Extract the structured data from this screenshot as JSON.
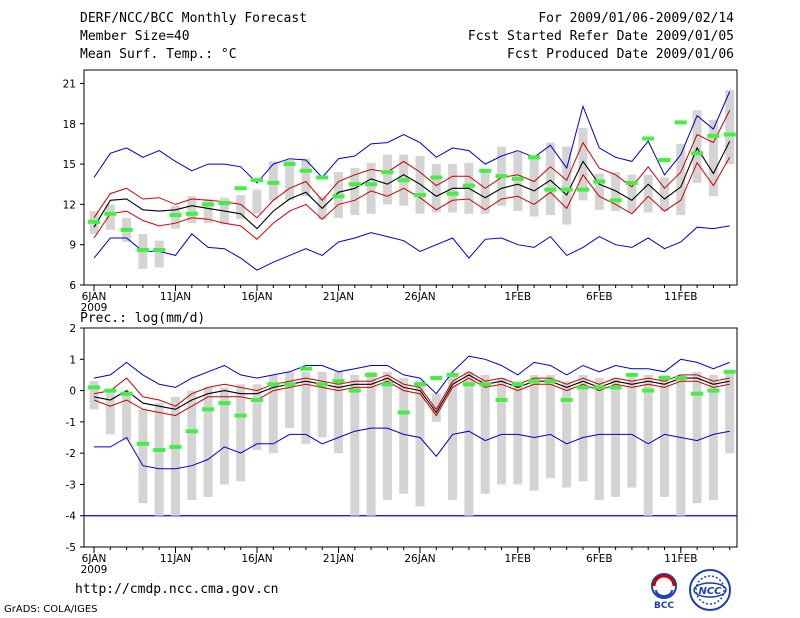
{
  "header": {
    "title": "DERF/NCC/BCC Monthly Forecast",
    "member_size": "Member Size=40",
    "variable": "Mean Surf. Temp.: °C",
    "period": "For 2009/01/06-2009/02/14",
    "started": "Fcst Started Refer Date 2009/01/05",
    "produced": "Fcst Produced Date 2009/01/06"
  },
  "precip_label": "Prec.: log(mm/d)",
  "footer": {
    "url": "http://cmdp.ncc.cma.gov.cn",
    "grads": "GrADS: COLA/IGES",
    "logo1": "BCC",
    "logo2": "NCC"
  },
  "colors": {
    "envelope": "#0000cc",
    "spread": "#cc0000",
    "mean": "#000000",
    "box": "#d4d4d4",
    "obs": "#44ee44"
  },
  "chart_data": [
    {
      "type": "line",
      "title": "Mean Surf. Temp.",
      "ylabel": "°C",
      "ylim": [
        6,
        22
      ],
      "yticks": [
        6,
        9,
        12,
        15,
        18,
        21
      ],
      "xtick_labels": [
        "6JAN",
        "11JAN",
        "16JAN",
        "21JAN",
        "26JAN",
        "1FEB",
        "6FEB",
        "11FEB"
      ],
      "xtick_days": [
        0,
        5,
        10,
        15,
        20,
        26,
        31,
        36
      ],
      "year_label": "2009",
      "n_days": 40,
      "series": [
        {
          "name": "max",
          "values": [
            14.0,
            15.8,
            16.2,
            15.5,
            16.0,
            15.2,
            14.5,
            15.0,
            15.0,
            14.8,
            13.6,
            15.0,
            15.4,
            15.3,
            14.0,
            15.4,
            15.6,
            16.5,
            16.6,
            17.2,
            16.6,
            15.5,
            16.2,
            16.0,
            15.0,
            15.6,
            16.0,
            15.5,
            16.4,
            14.7,
            19.3,
            16.2,
            15.5,
            15.2,
            16.7,
            14.2,
            15.7,
            18.6,
            17.6,
            20.4
          ]
        },
        {
          "name": "upper",
          "values": [
            11.0,
            12.8,
            13.2,
            12.4,
            12.5,
            12.0,
            12.4,
            12.3,
            12.2,
            12.0,
            11.0,
            12.3,
            13.2,
            13.7,
            12.3,
            13.7,
            14.2,
            14.6,
            14.4,
            15.2,
            14.4,
            13.4,
            14.1,
            14.1,
            13.2,
            14.0,
            14.2,
            13.7,
            14.8,
            13.8,
            16.6,
            14.7,
            14.2,
            13.3,
            14.8,
            13.2,
            14.4,
            17.2,
            16.6,
            19.0
          ]
        },
        {
          "name": "mean",
          "values": [
            10.3,
            12.3,
            12.4,
            11.6,
            11.5,
            11.6,
            11.9,
            11.7,
            11.5,
            11.3,
            10.2,
            11.5,
            12.4,
            12.9,
            11.7,
            12.9,
            13.2,
            13.9,
            13.5,
            14.2,
            13.5,
            12.6,
            13.2,
            13.2,
            12.5,
            13.2,
            13.5,
            13.0,
            13.8,
            12.7,
            15.2,
            13.5,
            13.0,
            12.3,
            13.5,
            12.4,
            13.3,
            16.2,
            14.3,
            16.7
          ]
        },
        {
          "name": "lower",
          "values": [
            9.5,
            11.3,
            11.5,
            10.8,
            10.4,
            10.6,
            11.0,
            10.9,
            10.6,
            10.4,
            9.4,
            10.6,
            11.5,
            12.0,
            10.9,
            12.0,
            12.3,
            13.0,
            12.6,
            13.2,
            12.5,
            11.6,
            12.3,
            12.4,
            11.6,
            12.4,
            12.6,
            12.0,
            12.9,
            11.7,
            14.2,
            12.6,
            12.0,
            11.3,
            12.6,
            11.5,
            12.3,
            15.1,
            13.4,
            15.5
          ]
        },
        {
          "name": "min",
          "values": [
            8.0,
            9.5,
            9.5,
            8.5,
            8.5,
            8.2,
            9.8,
            8.8,
            8.7,
            8.0,
            7.1,
            7.7,
            8.2,
            8.7,
            8.2,
            9.2,
            9.5,
            9.9,
            9.6,
            9.3,
            8.5,
            9.0,
            9.5,
            8.0,
            9.4,
            9.5,
            9.0,
            8.8,
            9.6,
            8.2,
            8.8,
            9.6,
            9.0,
            8.8,
            9.5,
            8.7,
            9.2,
            10.3,
            10.2,
            10.4
          ]
        },
        {
          "name": "box_high",
          "values": [
            11.5,
            12.0,
            11.0,
            9.8,
            9.3,
            11.9,
            12.6,
            12.4,
            12.5,
            12.7,
            13.1,
            15.2,
            15.3,
            15.4,
            12.6,
            14.4,
            14.7,
            15.1,
            15.7,
            15.7,
            15.6,
            15.0,
            15.0,
            15.1,
            14.5,
            16.3,
            15.9,
            15.6,
            16.6,
            16.3,
            17.7,
            14.3,
            14.4,
            14.2,
            14.2,
            14.0,
            16.5,
            19.0,
            18.3,
            20.5
          ]
        },
        {
          "name": "box_low",
          "values": [
            9.8,
            10.1,
            9.2,
            7.2,
            7.3,
            10.2,
            10.6,
            10.6,
            10.5,
            10.9,
            11.3,
            12.3,
            12.3,
            12.6,
            10.9,
            11.0,
            11.2,
            11.3,
            12.0,
            11.9,
            11.3,
            11.4,
            11.4,
            11.3,
            11.3,
            11.9,
            11.5,
            11.1,
            11.2,
            10.5,
            12.3,
            11.6,
            11.5,
            11.4,
            11.4,
            11.5,
            11.2,
            13.6,
            12.6,
            15.0
          ]
        },
        {
          "name": "observed",
          "values": [
            10.7,
            11.3,
            10.1,
            8.6,
            8.6,
            11.2,
            11.3,
            12.0,
            12.1,
            13.2,
            13.8,
            13.6,
            15.0,
            14.5,
            14.0,
            12.6,
            13.5,
            13.5,
            14.4,
            13.8,
            12.7,
            14.0,
            12.8,
            13.4,
            14.5,
            14.1,
            13.9,
            15.5,
            13.1,
            13.1,
            13.1,
            13.7,
            12.3,
            13.6,
            16.9,
            15.3,
            18.1,
            15.8,
            17.1,
            17.2
          ]
        }
      ]
    },
    {
      "type": "line",
      "title": "Prec.: log(mm/d)",
      "ylabel": "log(mm/d)",
      "ylim": [
        -5,
        2
      ],
      "yticks": [
        -5,
        -4,
        -3,
        -2,
        -1,
        0,
        1,
        2
      ],
      "xtick_labels": [
        "6JAN",
        "11JAN",
        "16JAN",
        "21JAN",
        "26JAN",
        "1FEB",
        "6FEB",
        "11FEB"
      ],
      "xtick_days": [
        0,
        5,
        10,
        15,
        20,
        26,
        31,
        36
      ],
      "year_label": "2009",
      "n_days": 40,
      "floor_value": -4,
      "series": [
        {
          "name": "max",
          "values": [
            0.4,
            0.5,
            0.9,
            0.5,
            0.2,
            0.1,
            0.4,
            0.6,
            0.8,
            0.5,
            0.4,
            0.5,
            0.6,
            0.8,
            0.8,
            0.6,
            0.7,
            0.8,
            0.8,
            0.5,
            0.4,
            -0.1,
            0.6,
            1.1,
            1.0,
            0.8,
            0.5,
            0.9,
            0.8,
            0.5,
            0.8,
            0.6,
            0.8,
            0.7,
            0.7,
            0.6,
            1.0,
            0.9,
            0.7,
            0.9
          ]
        },
        {
          "name": "upper",
          "values": [
            -0.1,
            0.0,
            0.4,
            -0.2,
            -0.3,
            -0.5,
            -0.1,
            0.1,
            0.2,
            0.1,
            0.0,
            0.2,
            0.3,
            0.4,
            0.3,
            0.2,
            0.3,
            0.3,
            0.5,
            0.2,
            0.1,
            -0.6,
            0.3,
            0.6,
            0.3,
            0.4,
            0.2,
            0.4,
            0.4,
            0.2,
            0.4,
            0.2,
            0.4,
            0.3,
            0.4,
            0.3,
            0.5,
            0.5,
            0.3,
            0.4
          ]
        },
        {
          "name": "mean",
          "values": [
            -0.2,
            -0.3,
            0.0,
            -0.4,
            -0.5,
            -0.6,
            -0.3,
            -0.1,
            0.0,
            -0.1,
            -0.1,
            0.1,
            0.2,
            0.3,
            0.2,
            0.1,
            0.2,
            0.2,
            0.4,
            0.1,
            0.0,
            -0.7,
            0.2,
            0.5,
            0.2,
            0.3,
            0.1,
            0.3,
            0.3,
            0.1,
            0.3,
            0.1,
            0.3,
            0.2,
            0.3,
            0.2,
            0.4,
            0.4,
            0.2,
            0.3
          ]
        },
        {
          "name": "lower",
          "values": [
            -0.3,
            -0.5,
            -0.3,
            -0.6,
            -0.7,
            -0.8,
            -0.5,
            -0.2,
            -0.2,
            -0.2,
            -0.3,
            0.0,
            0.1,
            0.2,
            0.1,
            0.0,
            0.1,
            0.1,
            0.3,
            0.0,
            -0.1,
            -0.8,
            0.1,
            0.4,
            0.1,
            0.2,
            0.0,
            0.2,
            0.2,
            0.0,
            0.2,
            0.0,
            0.2,
            0.1,
            0.2,
            0.1,
            0.3,
            0.3,
            0.1,
            0.2
          ]
        },
        {
          "name": "min",
          "values": [
            -1.8,
            -1.8,
            -1.5,
            -2.4,
            -2.5,
            -2.5,
            -2.4,
            -2.2,
            -1.8,
            -2.0,
            -1.7,
            -1.7,
            -1.4,
            -1.4,
            -1.7,
            -1.5,
            -1.3,
            -1.2,
            -1.2,
            -1.4,
            -1.5,
            -2.1,
            -1.4,
            -1.3,
            -1.6,
            -1.4,
            -1.4,
            -1.5,
            -1.4,
            -1.7,
            -1.5,
            -1.4,
            -1.4,
            -1.4,
            -1.7,
            -1.4,
            -1.5,
            -1.6,
            -1.4,
            -1.3
          ]
        },
        {
          "name": "box_high",
          "values": [
            0.3,
            0.0,
            -0.1,
            -0.6,
            -0.4,
            -0.2,
            0.0,
            0.1,
            0.1,
            0.2,
            0.2,
            0.5,
            0.6,
            0.6,
            0.6,
            0.6,
            0.5,
            0.6,
            0.6,
            0.4,
            0.3,
            -0.1,
            0.5,
            0.6,
            0.5,
            0.4,
            0.3,
            0.5,
            0.5,
            0.3,
            0.5,
            0.4,
            0.4,
            0.4,
            0.5,
            0.5,
            0.5,
            0.6,
            0.5,
            0.6
          ]
        },
        {
          "name": "box_low",
          "values": [
            -0.6,
            -1.4,
            -1.6,
            -3.6,
            -4.0,
            -4.0,
            -3.5,
            -3.4,
            -3.0,
            -2.9,
            -1.9,
            -2.0,
            -1.2,
            -1.7,
            -1.5,
            -2.0,
            -4.0,
            -4.0,
            -3.5,
            -3.3,
            -3.7,
            -1.0,
            -3.5,
            -4.0,
            -3.3,
            -3.0,
            -3.0,
            -3.2,
            -2.8,
            -3.1,
            -2.9,
            -3.5,
            -3.4,
            -3.1,
            -4.0,
            -3.4,
            -4.0,
            -3.6,
            -3.5,
            -2.0
          ]
        },
        {
          "name": "observed",
          "values": [
            0.1,
            0.0,
            -0.1,
            -1.7,
            -1.9,
            -1.8,
            -1.3,
            -0.6,
            -0.4,
            -0.8,
            -0.3,
            0.2,
            0.2,
            0.7,
            0.2,
            0.3,
            0.0,
            0.5,
            0.2,
            -0.7,
            0.2,
            0.4,
            0.5,
            0.2,
            0.2,
            -0.3,
            0.2,
            0.3,
            0.3,
            -0.3,
            0.1,
            0.1,
            0.1,
            0.5,
            0.0,
            0.4,
            0.4,
            -0.1,
            0.0,
            0.6
          ]
        }
      ]
    }
  ]
}
